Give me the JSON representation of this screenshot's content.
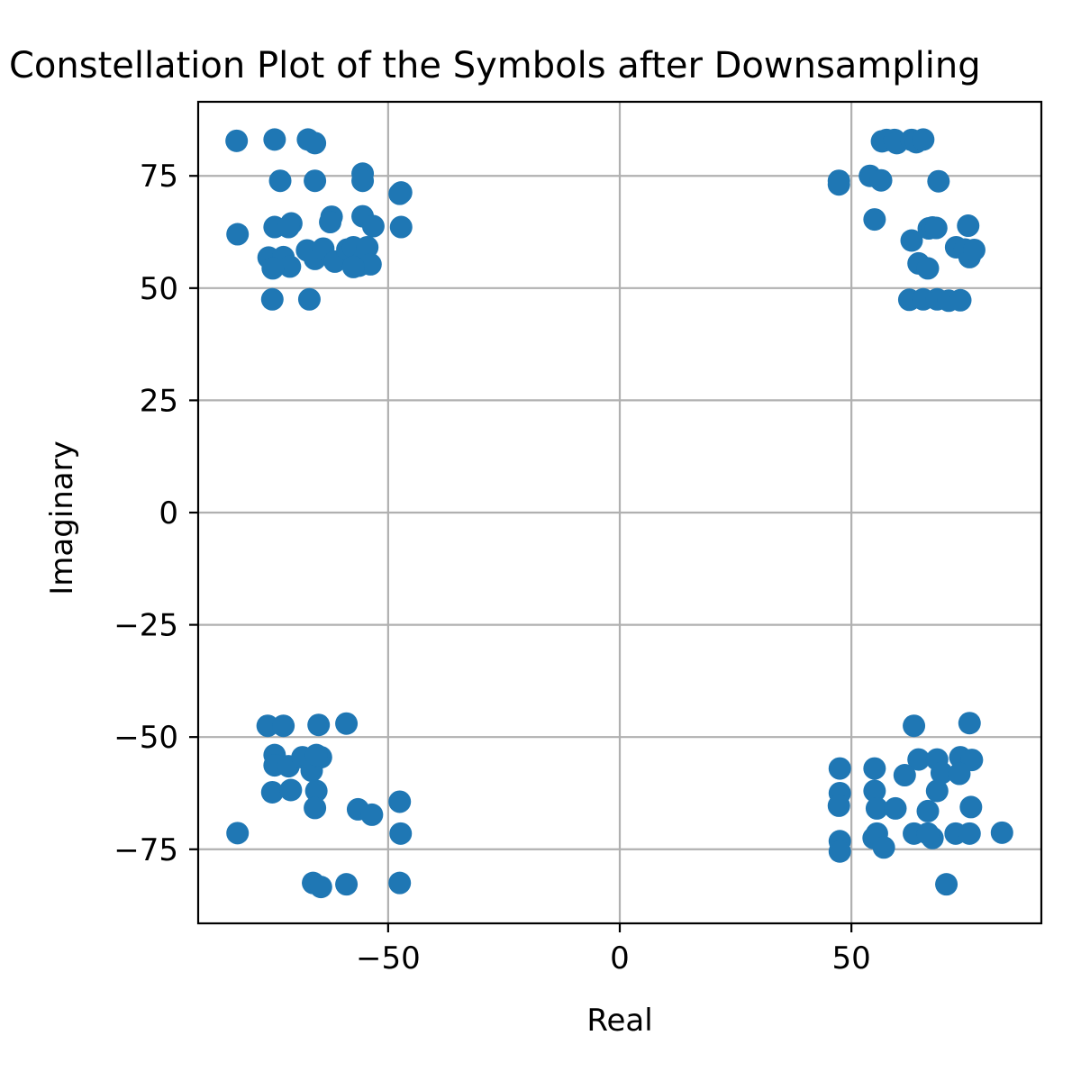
{
  "chart_data": {
    "type": "scatter",
    "title": "Constellation Plot of the Symbols after Downsampling",
    "xlabel": "Real",
    "ylabel": "Imaginary",
    "xlim": [
      -91,
      91
    ],
    "ylim": [
      -91.5,
      91.5
    ],
    "xticks": [
      -50,
      0,
      50
    ],
    "xtick_labels": [
      "−50",
      "0",
      "50"
    ],
    "yticks": [
      -75,
      -50,
      -25,
      0,
      25,
      50,
      75
    ],
    "ytick_labels": [
      "−75",
      "−50",
      "−25",
      "0",
      "25",
      "50",
      "75"
    ],
    "grid": true,
    "marker_color": "#1f77b4",
    "points": [
      [
        -82.7,
        82.8
      ],
      [
        -74.5,
        83.1
      ],
      [
        -67.3,
        83.1
      ],
      [
        -65.8,
        82.3
      ],
      [
        -73.3,
        73.9
      ],
      [
        -65.8,
        73.9
      ],
      [
        -55.5,
        75.5
      ],
      [
        -55.5,
        73.9
      ],
      [
        -47.2,
        71.3
      ],
      [
        -47.5,
        71.0
      ],
      [
        -82.5,
        62.0
      ],
      [
        -74.5,
        63.6
      ],
      [
        -70.9,
        64.4
      ],
      [
        -71.5,
        63.6
      ],
      [
        -62.2,
        65.9
      ],
      [
        -62.5,
        64.7
      ],
      [
        -55.5,
        66.0
      ],
      [
        -53.2,
        63.8
      ],
      [
        -47.2,
        63.6
      ],
      [
        -75.8,
        56.8
      ],
      [
        -72.6,
        56.9
      ],
      [
        -71.2,
        54.8
      ],
      [
        -74.9,
        54.4
      ],
      [
        -67.5,
        58.4
      ],
      [
        -65.8,
        56.5
      ],
      [
        -64.0,
        58.8
      ],
      [
        -61.5,
        55.9
      ],
      [
        -58.8,
        58.6
      ],
      [
        -57.5,
        59.1
      ],
      [
        -56.3,
        55.0
      ],
      [
        -55.0,
        57.2
      ],
      [
        -54.5,
        59.1
      ],
      [
        -53.8,
        55.3
      ],
      [
        -57.5,
        54.7
      ],
      [
        -75.0,
        47.5
      ],
      [
        -67.0,
        47.5
      ],
      [
        47.3,
        73.9
      ],
      [
        47.3,
        73.1
      ],
      [
        54.0,
        75.0
      ],
      [
        56.4,
        74.0
      ],
      [
        55.0,
        65.3
      ],
      [
        56.6,
        82.7
      ],
      [
        57.6,
        83.0
      ],
      [
        59.3,
        83.0
      ],
      [
        59.8,
        82.3
      ],
      [
        63.0,
        83.0
      ],
      [
        64.0,
        82.5
      ],
      [
        65.5,
        83.1
      ],
      [
        68.8,
        73.8
      ],
      [
        63.0,
        60.6
      ],
      [
        64.5,
        55.5
      ],
      [
        66.5,
        54.4
      ],
      [
        66.7,
        63.3
      ],
      [
        67.5,
        63.5
      ],
      [
        68.3,
        63.4
      ],
      [
        72.6,
        59.1
      ],
      [
        75.2,
        63.9
      ],
      [
        74.5,
        58.6
      ],
      [
        75.5,
        56.9
      ],
      [
        76.5,
        58.5
      ],
      [
        62.5,
        47.4
      ],
      [
        65.5,
        47.5
      ],
      [
        68.5,
        47.5
      ],
      [
        71.0,
        47.2
      ],
      [
        73.5,
        47.3
      ],
      [
        -76.0,
        -47.5
      ],
      [
        -72.6,
        -47.5
      ],
      [
        -65.0,
        -47.3
      ],
      [
        -59.0,
        -47.0
      ],
      [
        -74.5,
        -54.0
      ],
      [
        -74.5,
        -56.3
      ],
      [
        -71.5,
        -56.5
      ],
      [
        -68.5,
        -54.5
      ],
      [
        -66.5,
        -57.5
      ],
      [
        -64.5,
        -54.5
      ],
      [
        -65.5,
        -54.0
      ],
      [
        -75.0,
        -62.3
      ],
      [
        -71.0,
        -61.8
      ],
      [
        -65.5,
        -62.0
      ],
      [
        -65.8,
        -65.8
      ],
      [
        -56.5,
        -66.1
      ],
      [
        -53.5,
        -67.3
      ],
      [
        -47.5,
        -64.4
      ],
      [
        -47.3,
        -71.5
      ],
      [
        -82.5,
        -71.4
      ],
      [
        -66.2,
        -82.5
      ],
      [
        -64.5,
        -83.4
      ],
      [
        -59.0,
        -82.8
      ],
      [
        -47.5,
        -82.5
      ],
      [
        63.5,
        -47.5
      ],
      [
        75.5,
        -46.9
      ],
      [
        64.5,
        -55.0
      ],
      [
        68.5,
        -55.0
      ],
      [
        73.5,
        -54.5
      ],
      [
        76.0,
        -55.1
      ],
      [
        47.5,
        -57.0
      ],
      [
        55.0,
        -57.0
      ],
      [
        61.5,
        -58.5
      ],
      [
        69.5,
        -58.0
      ],
      [
        73.3,
        -58.2
      ],
      [
        47.5,
        -62.5
      ],
      [
        55.0,
        -62.0
      ],
      [
        68.5,
        -62.0
      ],
      [
        47.3,
        -65.3
      ],
      [
        55.5,
        -65.9
      ],
      [
        59.5,
        -65.9
      ],
      [
        66.5,
        -66.5
      ],
      [
        75.8,
        -65.6
      ],
      [
        47.5,
        -73.2
      ],
      [
        47.5,
        -75.5
      ],
      [
        54.8,
        -72.5
      ],
      [
        55.5,
        -71.5
      ],
      [
        57.0,
        -74.6
      ],
      [
        63.5,
        -71.5
      ],
      [
        67.5,
        -72.5
      ],
      [
        66.5,
        -71.5
      ],
      [
        72.5,
        -71.5
      ],
      [
        75.5,
        -71.5
      ],
      [
        82.5,
        -71.3
      ],
      [
        70.5,
        -82.8
      ]
    ]
  }
}
